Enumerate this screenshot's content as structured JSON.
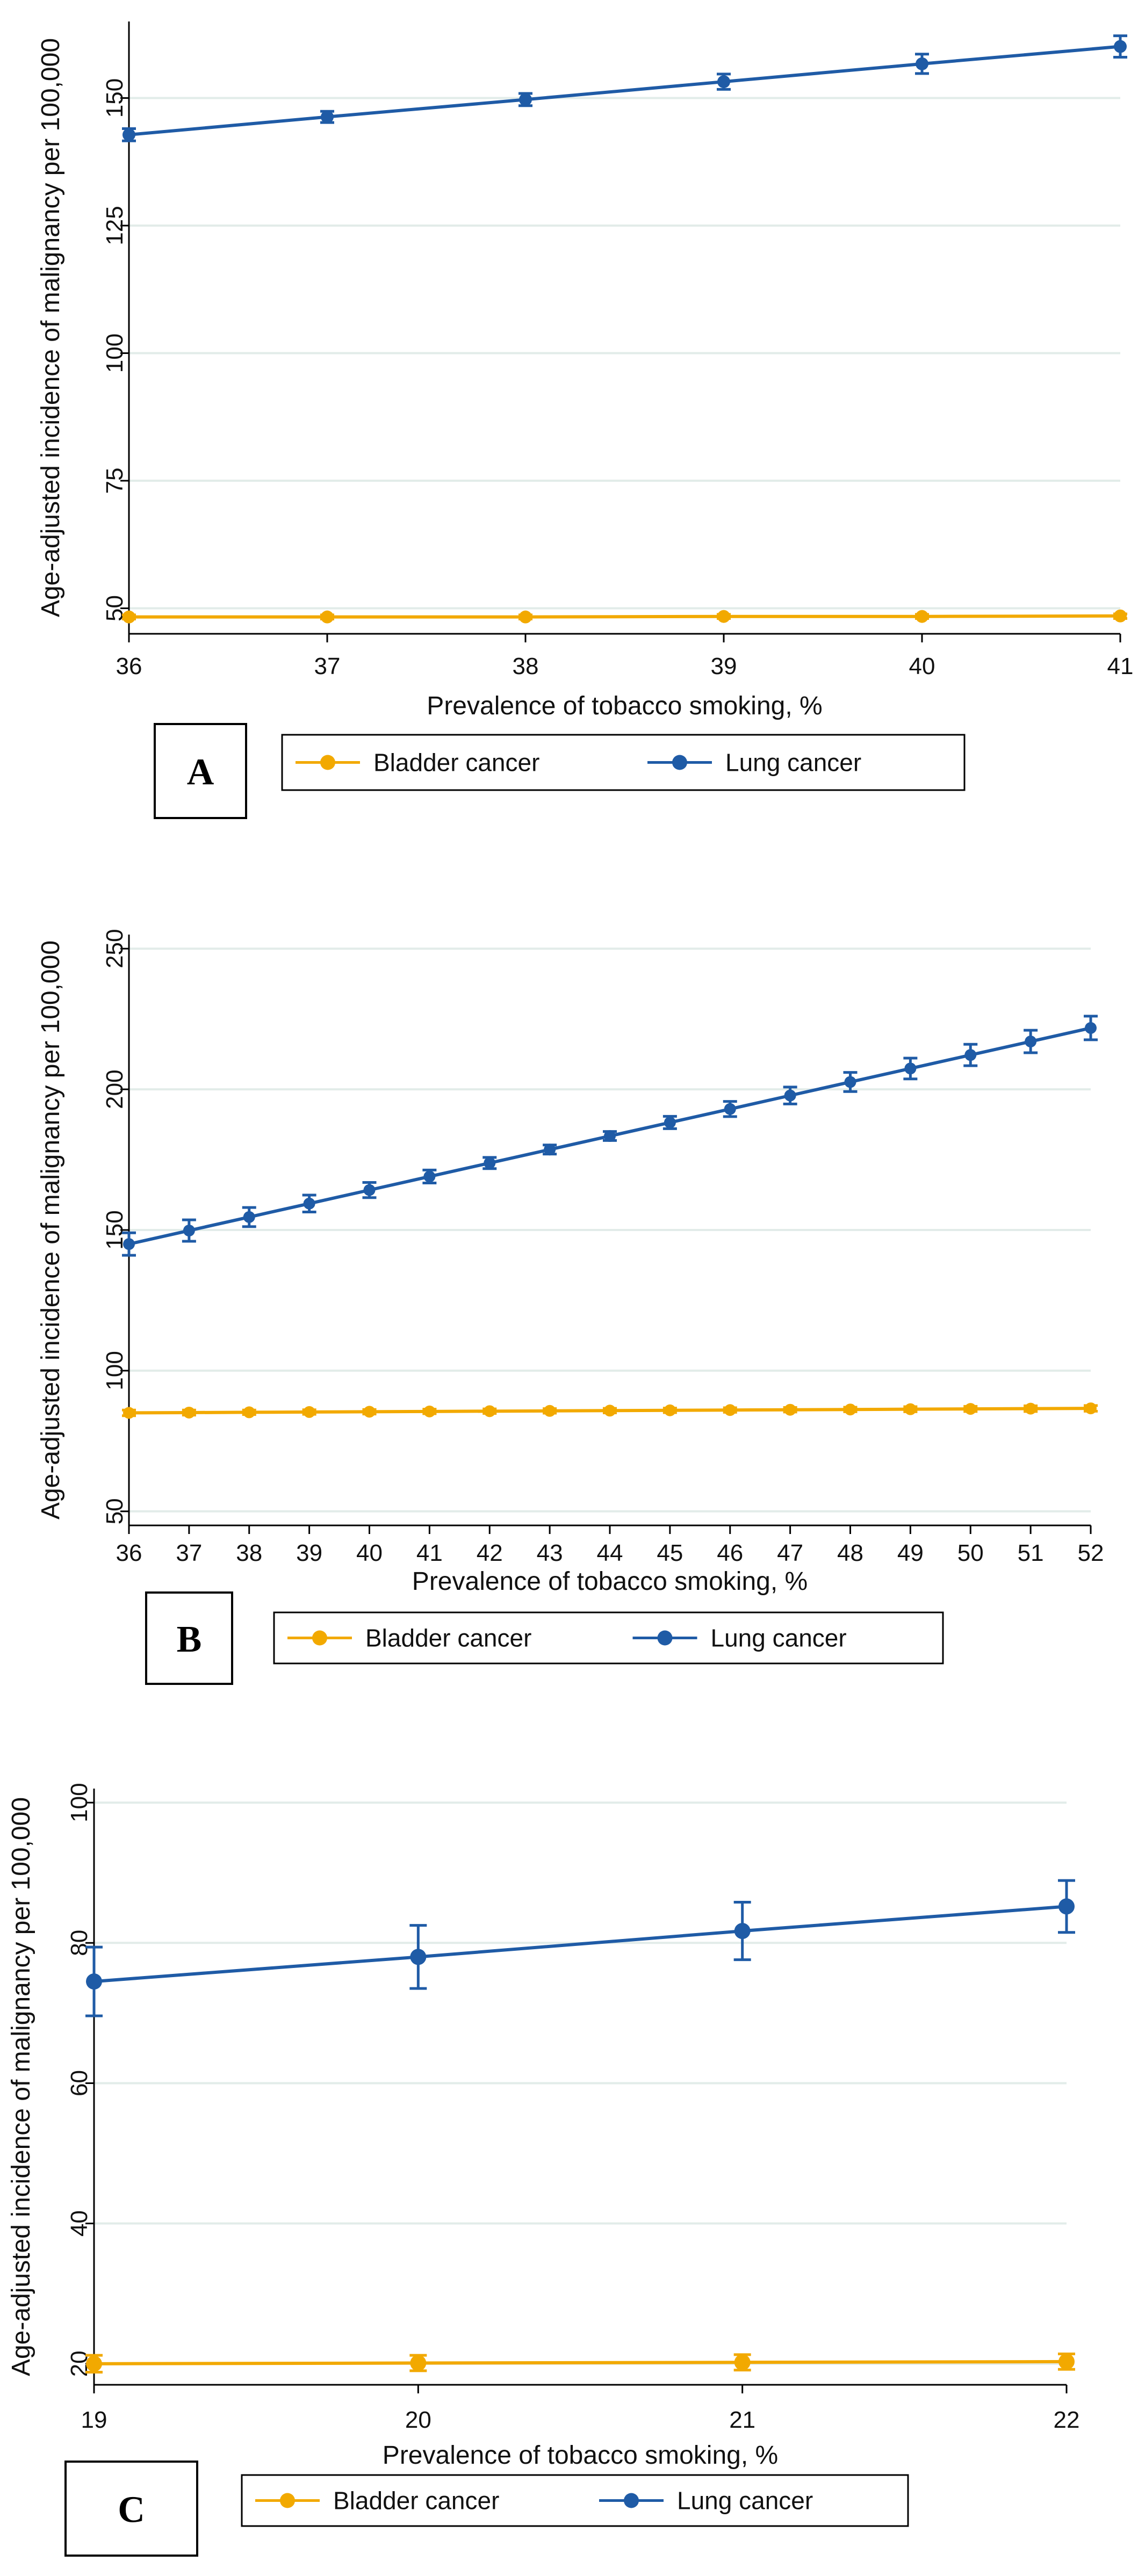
{
  "figure": {
    "background": "#ffffff"
  },
  "chart_data": [
    {
      "type": "line",
      "panel": "A",
      "xlabel": "Prevalence of tobacco smoking, %",
      "ylabel": "Age-adjusted incidence of malignancy per 100,000",
      "xlim": [
        36,
        41
      ],
      "ylim": [
        45,
        165
      ],
      "xticks": [
        "36",
        "37",
        "38",
        "39",
        "40",
        "41"
      ],
      "yticks": [
        "50",
        "75",
        "100",
        "125",
        "150"
      ],
      "grid": true,
      "categories": [
        36,
        37,
        38,
        39,
        40,
        41
      ],
      "series": [
        {
          "name": "Bladder cancer",
          "color": "#f2a900",
          "values": [
            48.3,
            48.3,
            48.3,
            48.4,
            48.4,
            48.5
          ],
          "ci_low": [
            47.9,
            47.9,
            47.9,
            48.0,
            48.0,
            48.0
          ],
          "ci_high": [
            48.7,
            48.7,
            48.7,
            48.8,
            48.8,
            48.9
          ]
        },
        {
          "name": "Lung cancer",
          "color": "#1f5ba6",
          "values": [
            142.8,
            146.3,
            149.7,
            153.2,
            156.7,
            160.1
          ],
          "ci_low": [
            141.6,
            145.2,
            148.5,
            151.7,
            154.8,
            158.0
          ],
          "ci_high": [
            144.0,
            147.4,
            150.9,
            154.7,
            158.6,
            162.2
          ]
        }
      ]
    },
    {
      "type": "line",
      "panel": "B",
      "xlabel": "Prevalence of tobacco smoking, %",
      "ylabel": "Age-adjusted incidence of malignancy per 100,000",
      "xlim": [
        36,
        52
      ],
      "ylim": [
        45,
        255
      ],
      "xticks": [
        "36",
        "37",
        "38",
        "39",
        "40",
        "41",
        "42",
        "43",
        "44",
        "45",
        "46",
        "47",
        "48",
        "49",
        "50",
        "51",
        "52"
      ],
      "yticks": [
        "50",
        "100",
        "150",
        "200",
        "250"
      ],
      "grid": true,
      "categories": [
        36,
        37,
        38,
        39,
        40,
        41,
        42,
        43,
        44,
        45,
        46,
        47,
        48,
        49,
        50,
        51,
        52
      ],
      "series": [
        {
          "name": "Bladder cancer",
          "color": "#f2a900",
          "values": [
            85.0,
            85.1,
            85.2,
            85.3,
            85.4,
            85.5,
            85.6,
            85.7,
            85.8,
            85.9,
            86.0,
            86.1,
            86.2,
            86.3,
            86.4,
            86.5,
            86.6
          ],
          "ci_low": [
            84.0,
            84.2,
            84.4,
            84.5,
            84.6,
            84.7,
            84.8,
            84.9,
            85.0,
            85.1,
            85.2,
            85.3,
            85.4,
            85.4,
            85.5,
            85.5,
            85.6
          ],
          "ci_high": [
            86.0,
            86.0,
            86.0,
            86.1,
            86.2,
            86.3,
            86.4,
            86.5,
            86.6,
            86.7,
            86.8,
            86.9,
            87.0,
            87.2,
            87.3,
            87.5,
            87.6
          ]
        },
        {
          "name": "Lung cancer",
          "color": "#1f5ba6",
          "values": [
            145.0,
            149.8,
            154.6,
            159.4,
            164.2,
            169.0,
            173.8,
            178.6,
            183.4,
            188.2,
            193.0,
            197.8,
            202.6,
            207.4,
            212.2,
            217.0,
            221.8
          ],
          "ci_low": [
            141.0,
            146.0,
            151.2,
            156.4,
            161.5,
            166.7,
            171.8,
            177.0,
            181.8,
            186.0,
            190.3,
            194.8,
            199.2,
            203.7,
            208.4,
            213.0,
            217.6
          ],
          "ci_high": [
            149.0,
            153.6,
            158.0,
            162.4,
            166.9,
            171.3,
            175.8,
            180.2,
            185.0,
            190.4,
            195.7,
            200.8,
            206.0,
            211.1,
            216.0,
            221.0,
            226.0
          ]
        }
      ]
    },
    {
      "type": "line",
      "panel": "C",
      "xlabel": "Prevalence of tobacco smoking, %",
      "ylabel": "Age-adjusted incidence of malignancy per 100,000",
      "xlim": [
        19,
        22
      ],
      "ylim": [
        17,
        102
      ],
      "xticks": [
        "19",
        "20",
        "21",
        "22"
      ],
      "yticks": [
        "20",
        "40",
        "60",
        "80",
        "100"
      ],
      "grid": true,
      "categories": [
        19,
        20,
        21,
        22
      ],
      "series": [
        {
          "name": "Bladder cancer",
          "color": "#f2a900",
          "values": [
            20.0,
            20.1,
            20.2,
            20.3
          ],
          "ci_low": [
            18.8,
            19.0,
            19.1,
            19.2
          ],
          "ci_high": [
            21.2,
            21.2,
            21.3,
            21.4
          ]
        },
        {
          "name": "Lung cancer",
          "color": "#1f5ba6",
          "values": [
            74.5,
            78.0,
            81.7,
            85.2
          ],
          "ci_low": [
            69.6,
            73.5,
            77.6,
            81.5
          ],
          "ci_high": [
            79.4,
            82.5,
            85.8,
            88.9
          ]
        }
      ]
    }
  ]
}
